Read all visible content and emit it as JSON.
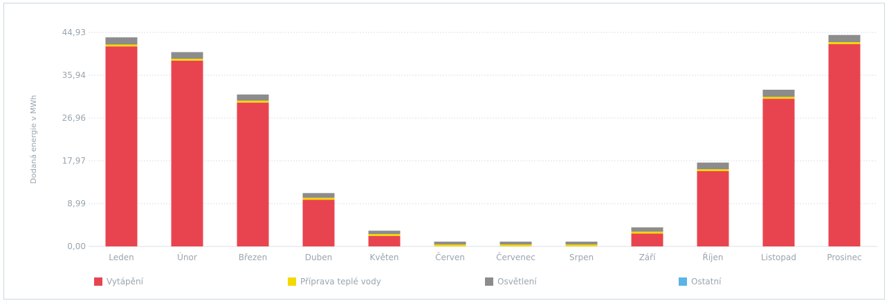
{
  "chart_data": {
    "type": "bar",
    "stacked": true,
    "ylabel": "Dodaná energie v MWh",
    "xlabel": "",
    "ylim": [
      0,
      44.93
    ],
    "y_ticks": [
      "0,00",
      "8,99",
      "17,97",
      "26,96",
      "35,94",
      "44,93"
    ],
    "y_tick_values": [
      0,
      8.99,
      17.97,
      26.96,
      35.94,
      44.93
    ],
    "grid": true,
    "legend_position": "bottom",
    "categories": [
      "Leden",
      "Únor",
      "Březen",
      "Duben",
      "Květen",
      "Červen",
      "Červenec",
      "Srpen",
      "Září",
      "Říjen",
      "Listopad",
      "Prosinec"
    ],
    "series": [
      {
        "name": "Vytápění",
        "color": "#e8444f",
        "values": [
          42.0,
          39.0,
          30.2,
          9.8,
          2.2,
          0,
          0,
          0,
          2.7,
          15.8,
          31.0,
          42.5
        ]
      },
      {
        "name": "Příprava teplé vody",
        "color": "#f5d800",
        "values": [
          0.4,
          0.4,
          0.4,
          0.4,
          0.4,
          0.4,
          0.4,
          0.4,
          0.4,
          0.4,
          0.4,
          0.4
        ]
      },
      {
        "name": "Osvětlení",
        "color": "#8c8c8c",
        "values": [
          1.5,
          1.4,
          1.3,
          1.0,
          0.7,
          0.6,
          0.6,
          0.6,
          0.9,
          1.4,
          1.5,
          1.5
        ]
      },
      {
        "name": "Ostatní",
        "color": "#5ab4e5",
        "values": [
          0,
          0,
          0,
          0,
          0,
          0,
          0,
          0,
          0,
          0,
          0,
          0
        ]
      }
    ]
  },
  "colors": {
    "grid": "#d9e2ea",
    "axis_text": "#9aa5ae",
    "frame": "#c9d6df"
  }
}
